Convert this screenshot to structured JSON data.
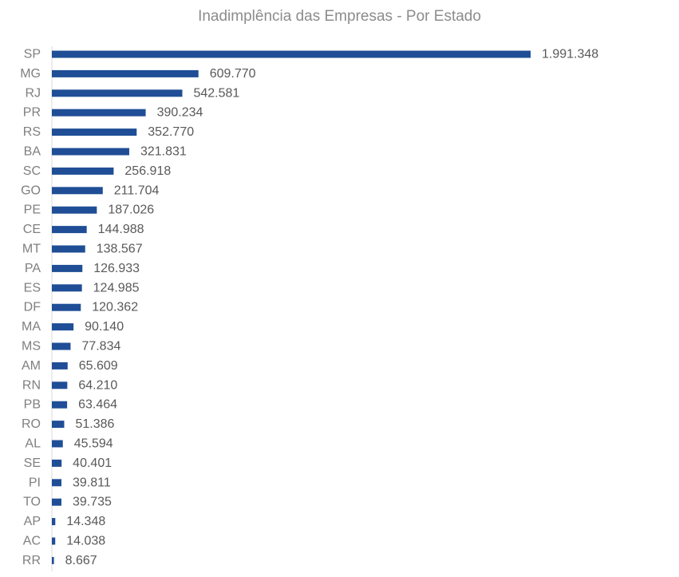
{
  "chart_data": {
    "type": "bar",
    "orientation": "horizontal",
    "title": "Inadimplência  das Empresas - Por Estado",
    "bar_color": "#1f4e96",
    "categories": [
      "SP",
      "MG",
      "RJ",
      "PR",
      "RS",
      "BA",
      "SC",
      "GO",
      "PE",
      "CE",
      "MT",
      "PA",
      "ES",
      "DF",
      "MA",
      "MS",
      "AM",
      "RN",
      "PB",
      "RO",
      "AL",
      "SE",
      "PI",
      "TO",
      "AP",
      "AC",
      "RR"
    ],
    "values": [
      1991348,
      609770,
      542581,
      390234,
      352770,
      321831,
      256918,
      211704,
      187026,
      144988,
      138567,
      126933,
      124985,
      120362,
      90140,
      77834,
      65609,
      64210,
      63464,
      51386,
      45594,
      40401,
      39811,
      39735,
      14348,
      14038,
      8667
    ],
    "value_labels": [
      "1.991.348",
      "609.770",
      "542.581",
      "390.234",
      "352.770",
      "321.831",
      "256.918",
      "211.704",
      "187.026",
      "144.988",
      "138.567",
      "126.933",
      "124.985",
      "120.362",
      "90.140",
      "77.834",
      "65.609",
      "64.210",
      "63.464",
      "51.386",
      "45.594",
      "40.401",
      "39.811",
      "39.735",
      "14.348",
      "14.038",
      "8.667"
    ],
    "xlim": [
      0,
      1991348
    ],
    "grid": false,
    "legend": "none"
  }
}
